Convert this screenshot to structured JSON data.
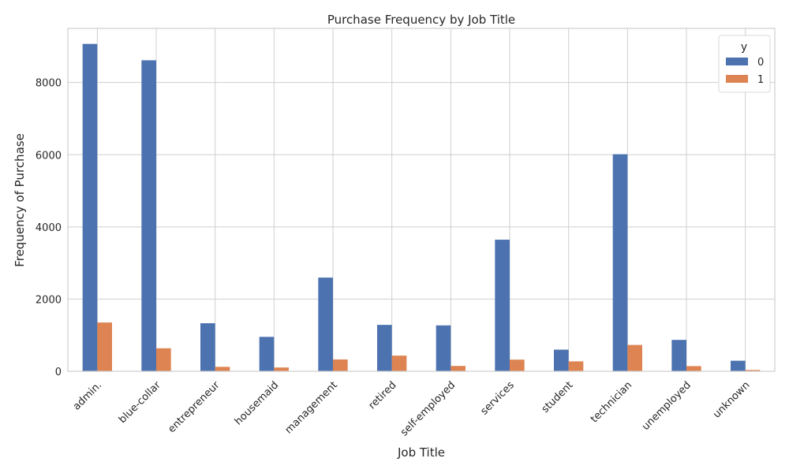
{
  "chart_data": {
    "type": "bar",
    "title": "Purchase Frequency by Job Title",
    "xlabel": "Job Title",
    "ylabel": "Frequency of Purchase",
    "categories": [
      "admin.",
      "blue-collar",
      "entrepreneur",
      "housemaid",
      "management",
      "retired",
      "self-employed",
      "services",
      "student",
      "technician",
      "unemployed",
      "unknown"
    ],
    "series": [
      {
        "name": "0",
        "color": "#4c72b0",
        "values": [
          9070,
          8616,
          1332,
          954,
          2596,
          1286,
          1272,
          3646,
          600,
          6013,
          870,
          293
        ]
      },
      {
        "name": "1",
        "color": "#dd8452",
        "values": [
          1352,
          638,
          124,
          106,
          328,
          434,
          149,
          323,
          275,
          730,
          144,
          37
        ]
      }
    ],
    "ylim": [
      0,
      9500
    ],
    "yticks": [
      0,
      2000,
      4000,
      6000,
      8000
    ],
    "grid": true,
    "legend": {
      "title": "y",
      "placement": "top-right"
    }
  }
}
